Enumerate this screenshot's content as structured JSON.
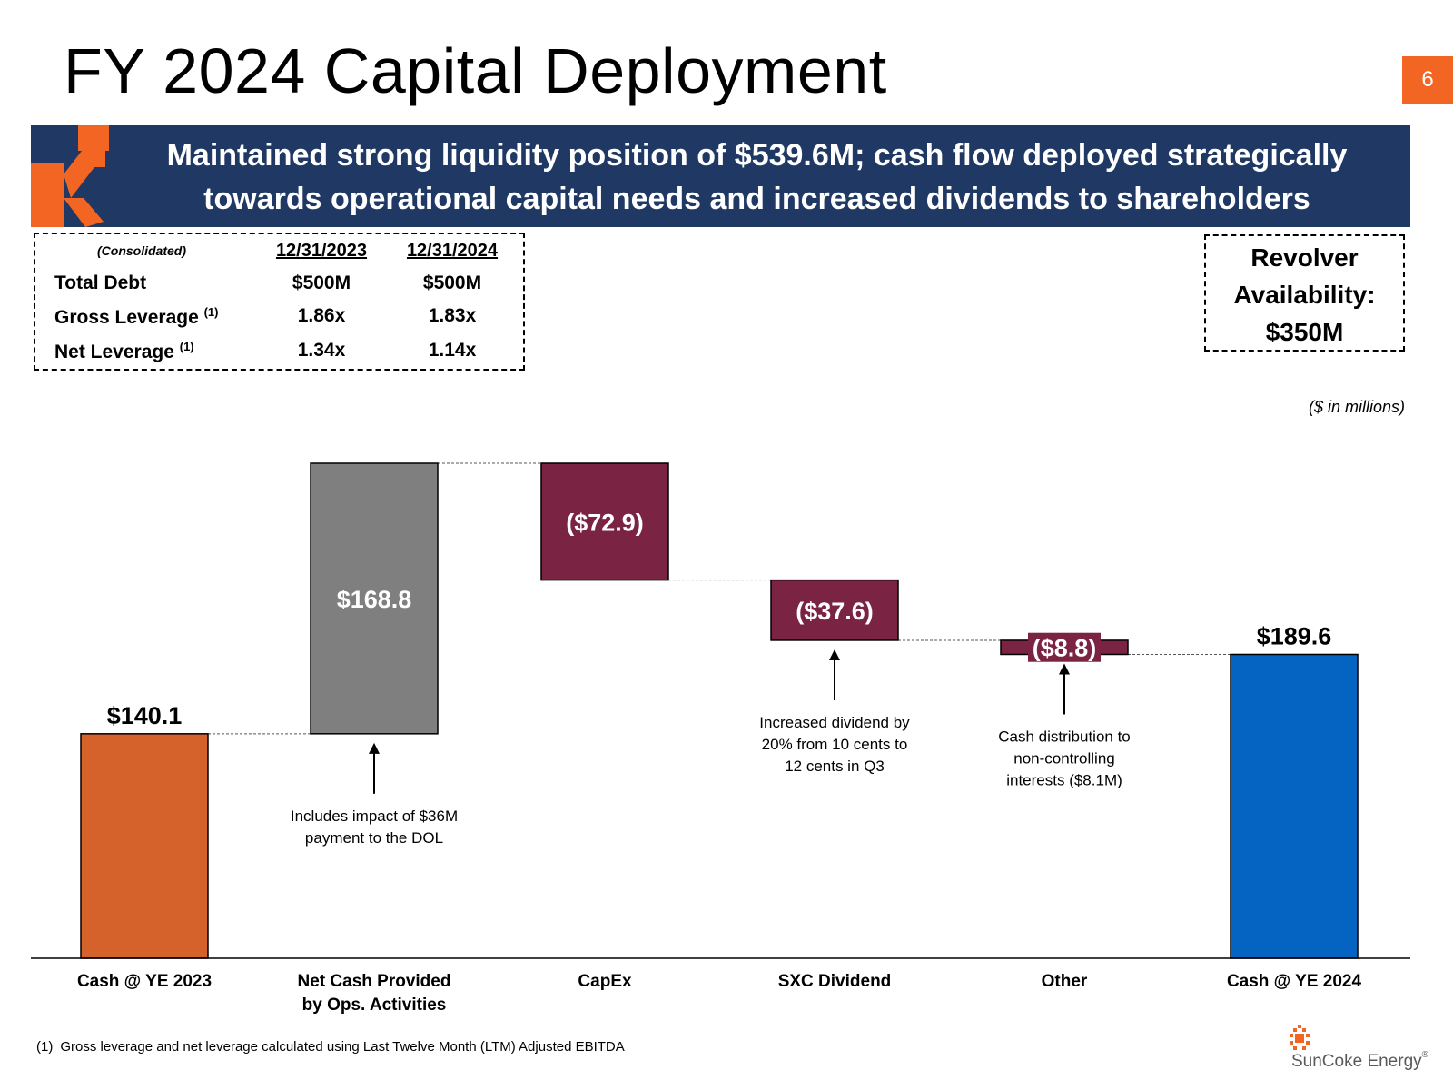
{
  "title": "FY 2024 Capital Deployment",
  "page_number": "6",
  "banner": {
    "line1": "Maintained strong liquidity position of $539.6M; cash flow deployed strategically",
    "line2": "towards operational capital needs and increased dividends to shareholders"
  },
  "metrics": {
    "header": "(Consolidated)",
    "col1": "12/31/2023",
    "col2": "12/31/2024",
    "rows": [
      {
        "label": "Total Debt",
        "sup": "",
        "v1": "$500M",
        "v2": "$500M"
      },
      {
        "label": "Gross Leverage ",
        "sup": "(1)",
        "v1": "1.86x",
        "v2": "1.83x"
      },
      {
        "label": "Net Leverage ",
        "sup": "(1)",
        "v1": "1.34x",
        "v2": "1.14x"
      }
    ]
  },
  "revolver": {
    "line1": "Revolver",
    "line2": "Availability:",
    "line3": "$350M"
  },
  "units_note": "($ in millions)",
  "footnote": {
    "marker": "(1)",
    "text": "Gross leverage and net leverage calculated using Last Twelve Month (LTM) Adjusted EBITDA"
  },
  "brand": {
    "name": "SunCoke Energy",
    "reg": "®"
  },
  "colors": {
    "orange": "#d4622a",
    "gray": "#7f7f7f",
    "maroon": "#7b2343",
    "blue": "#0563c1",
    "navy": "#1f3864",
    "accent": "#f26522"
  },
  "chart_data": {
    "type": "waterfall",
    "title": "",
    "units": "$ in millions",
    "categories": [
      "Cash @ YE 2023",
      "Net Cash Provided by Ops. Activities",
      "CapEx",
      "SXC Dividend",
      "Other",
      "Cash @ YE 2024"
    ],
    "values": [
      140.1,
      168.8,
      -72.9,
      -37.6,
      -8.8,
      189.6
    ],
    "kinds": [
      "total",
      "increase",
      "decrease",
      "decrease",
      "decrease",
      "total"
    ],
    "value_labels": [
      "$140.1",
      "$168.8",
      "($72.9)",
      "($37.6)",
      "($8.8)",
      "$189.6"
    ],
    "bar_colors": [
      "#d4622a",
      "#7f7f7f",
      "#7b2343",
      "#7b2343",
      "#7b2343",
      "#0563c1"
    ],
    "ylim": [
      0,
      308.9
    ],
    "annotations": [
      {
        "bar": 1,
        "lines": [
          "Includes impact of $36M",
          "payment to the DOL"
        ]
      },
      {
        "bar": 3,
        "lines": [
          "Increased dividend by",
          "20% from 10 cents to",
          "12 cents in Q3"
        ]
      },
      {
        "bar": 4,
        "lines": [
          "Cash distribution to",
          "non-controlling",
          "interests ($8.1M)"
        ]
      }
    ],
    "xlabel_lines": [
      [
        "Cash @ YE 2023"
      ],
      [
        "Net Cash Provided",
        "by Ops. Activities"
      ],
      [
        "CapEx"
      ],
      [
        "SXC Dividend"
      ],
      [
        "Other"
      ],
      [
        "Cash @ YE 2024"
      ]
    ]
  }
}
